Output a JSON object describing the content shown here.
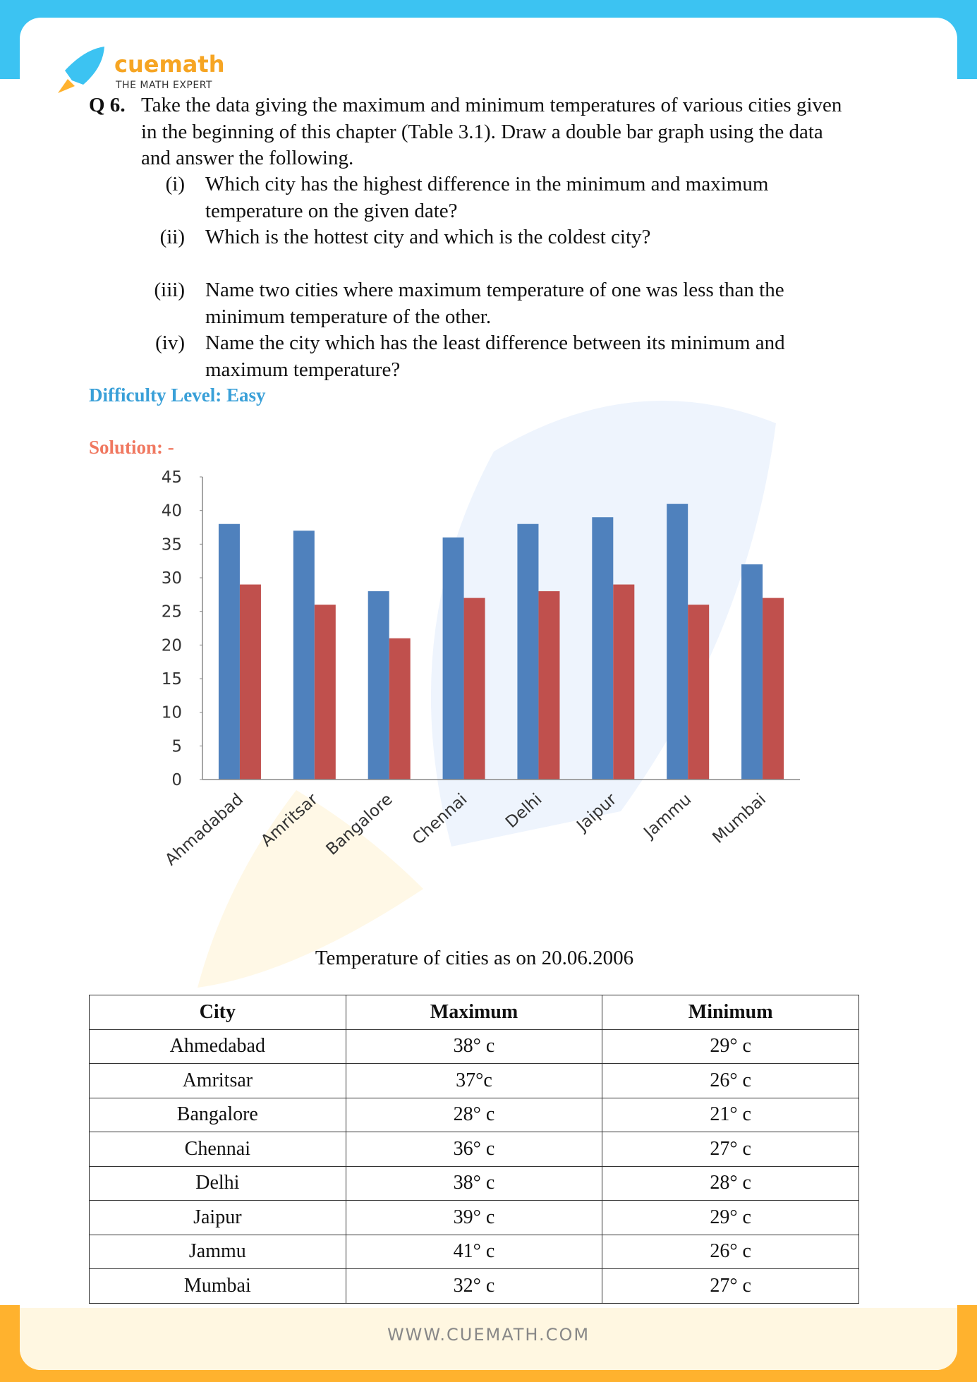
{
  "header": {
    "brand": "cuemath",
    "tagline": "THE MATH EXPERT"
  },
  "question": {
    "number": "Q 6",
    "text": "Take the data giving the maximum and minimum temperatures of various cities given in the beginning of this chapter (Table 3.1). Draw a double bar graph using the data and answer the following.",
    "items": [
      {
        "label": "(i)",
        "text": "Which city has the highest difference in the minimum and maximum temperature on the given date?"
      },
      {
        "label": "(ii)",
        "text": "Which is the hottest city and which is the coldest city?"
      },
      {
        "label": "(iii)",
        "text": "Name two cities where maximum temperature of one was less than the minimum temperature of the other."
      },
      {
        "label": "(iv)",
        "text": "Name the city which has the least difference between its minimum and maximum temperature?"
      }
    ]
  },
  "difficulty": "Difficulty Level: Easy",
  "solution_label": "Solution: -",
  "chart_data": {
    "type": "bar",
    "categories": [
      "Ahmadabad",
      "Amritsar",
      "Bangalore",
      "Chennai",
      "Delhi",
      "Jaipur",
      "Jammu",
      "Mumbai"
    ],
    "series": [
      {
        "color": "#4f81bd",
        "values": [
          38,
          37,
          28,
          36,
          38,
          39,
          41,
          32
        ]
      },
      {
        "color": "#c0504d",
        "values": [
          29,
          26,
          21,
          27,
          28,
          29,
          26,
          27
        ]
      }
    ],
    "ylim": [
      0,
      45
    ],
    "yticks": [
      0,
      5,
      10,
      15,
      20,
      25,
      30,
      35,
      40,
      45
    ],
    "grid": false
  },
  "table": {
    "caption": "Temperature of cities as on 20.06.2006",
    "header": [
      "City",
      "Maximum",
      "Minimum"
    ],
    "rows": [
      [
        "Ahmedabad",
        "38° c",
        "29° c"
      ],
      [
        "Amritsar",
        "37°c",
        "26° c"
      ],
      [
        "Bangalore",
        "28° c",
        "21° c"
      ],
      [
        "Chennai",
        "36° c",
        "27° c"
      ],
      [
        "Delhi",
        "38° c",
        "28° c"
      ],
      [
        "Jaipur",
        "39° c",
        "29° c"
      ],
      [
        "Jammu",
        "41° c",
        "26° c"
      ],
      [
        "Mumbai",
        "32° c",
        "27° c"
      ]
    ]
  },
  "footer": "WWW.CUEMATH.COM"
}
